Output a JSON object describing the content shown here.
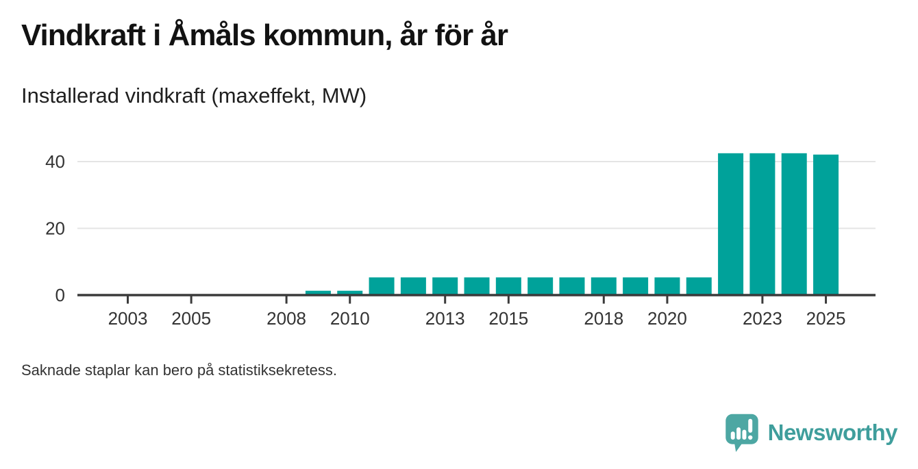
{
  "header": {
    "title": "Vindkraft i Åmåls kommun, år för år",
    "subtitle": "Installerad vindkraft (maxeffekt, MW)"
  },
  "footer": {
    "note": "Saknade staplar kan bero på statistiksekretess."
  },
  "branding": {
    "name": "Newsworthy",
    "icon": "speech-bubble-bar-chart-icon",
    "icon_color": "#4da7a3",
    "text_color": "#3f9e9c"
  },
  "colors": {
    "bar": "#00a29a",
    "grid": "#e4e4e4",
    "axis": "#3b3b3b",
    "tick_text": "#333333"
  },
  "chart_data": {
    "type": "bar",
    "title": "Vindkraft i Åmåls kommun, år för år",
    "subtitle": "Installerad vindkraft (maxeffekt, MW)",
    "ylabel": "Installerad vindkraft (maxeffekt, MW)",
    "xlabel": "",
    "unit": "MW",
    "points": [
      {
        "year": 2009,
        "value": 1.3
      },
      {
        "year": 2010,
        "value": 1.3
      },
      {
        "year": 2011,
        "value": 5.3
      },
      {
        "year": 2012,
        "value": 5.3
      },
      {
        "year": 2013,
        "value": 5.3
      },
      {
        "year": 2014,
        "value": 5.3
      },
      {
        "year": 2015,
        "value": 5.3
      },
      {
        "year": 2016,
        "value": 5.3
      },
      {
        "year": 2017,
        "value": 5.3
      },
      {
        "year": 2018,
        "value": 5.3
      },
      {
        "year": 2019,
        "value": 5.3
      },
      {
        "year": 2020,
        "value": 5.3
      },
      {
        "year": 2021,
        "value": 5.3
      },
      {
        "year": 2022,
        "value": 42.5
      },
      {
        "year": 2023,
        "value": 42.5
      },
      {
        "year": 2024,
        "value": 42.5
      },
      {
        "year": 2025,
        "value": 42.1
      }
    ],
    "x_tick_labels": [
      "2003",
      "2005",
      "2008",
      "2010",
      "2013",
      "2015",
      "2018",
      "2020",
      "2023",
      "2025"
    ],
    "y_tick_labels": [
      "0",
      "20",
      "40"
    ],
    "xlim": [
      2001.4,
      2026.6
    ],
    "ylim": [
      0,
      47
    ],
    "grid": "horizontal-only",
    "legend": "none",
    "bar_color": "#00a29a"
  }
}
